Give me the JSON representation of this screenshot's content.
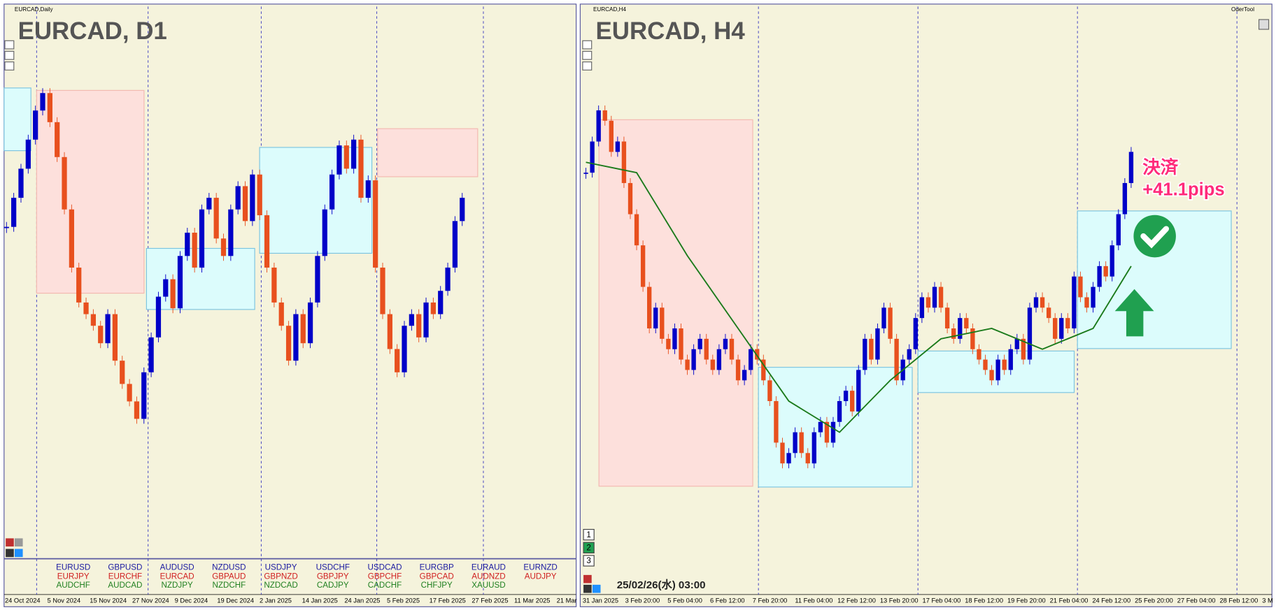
{
  "left_chart": {
    "window_label": "EURCAD,Daily",
    "title": "EURCAD, D1",
    "ylim": [
      1.44,
      1.51
    ],
    "closes": [
      1.485,
      1.49,
      1.495,
      1.5,
      1.505,
      1.508,
      1.503,
      1.497,
      1.488,
      1.478,
      1.472,
      1.47,
      1.468,
      1.465,
      1.47,
      1.462,
      1.458,
      1.455,
      1.452,
      1.46,
      1.466,
      1.473,
      1.476,
      1.471,
      1.48,
      1.484,
      1.478,
      1.488,
      1.49,
      1.483,
      1.48,
      1.488,
      1.492,
      1.486,
      1.494,
      1.487,
      1.478,
      1.472,
      1.468,
      1.462,
      1.47,
      1.465,
      1.472,
      1.48,
      1.488,
      1.494,
      1.499,
      1.495,
      1.5,
      1.49,
      1.493,
      1.478,
      1.47,
      1.464,
      1.46,
      1.468,
      1.47,
      1.466,
      1.472,
      1.47,
      1.474,
      1.478,
      1.486,
      1.49
    ],
    "x_labels": [
      "24 Oct 2024",
      "5 Nov 2024",
      "15 Nov 2024",
      "27 Nov 2024",
      "9 Dec 2024",
      "19 Dec 2024",
      "2 Jan 2025",
      "14 Jan 2025",
      "24 Jan 2025",
      "5 Feb 2025",
      "17 Feb 2025",
      "27 Feb 2025",
      "11 Mar 2025",
      "21 Mar"
    ]
  },
  "right_chart": {
    "window_label": "EURCAD,H4",
    "tool_label": "OderTool",
    "title": "EURCAD, H4",
    "ylim": [
      1.462,
      1.502
    ],
    "closes": [
      1.494,
      1.497,
      1.5,
      1.499,
      1.496,
      1.497,
      1.493,
      1.49,
      1.487,
      1.483,
      1.479,
      1.481,
      1.478,
      1.477,
      1.479,
      1.476,
      1.475,
      1.477,
      1.478,
      1.476,
      1.475,
      1.477,
      1.478,
      1.476,
      1.474,
      1.475,
      1.477,
      1.476,
      1.474,
      1.472,
      1.468,
      1.466,
      1.467,
      1.469,
      1.467,
      1.466,
      1.469,
      1.47,
      1.468,
      1.47,
      1.472,
      1.473,
      1.471,
      1.475,
      1.478,
      1.476,
      1.479,
      1.481,
      1.478,
      1.474,
      1.476,
      1.477,
      1.48,
      1.482,
      1.481,
      1.483,
      1.481,
      1.479,
      1.478,
      1.48,
      1.479,
      1.477,
      1.476,
      1.475,
      1.474,
      1.476,
      1.475,
      1.477,
      1.478,
      1.476,
      1.481,
      1.482,
      1.481,
      1.48,
      1.478,
      1.48,
      1.479,
      1.484,
      1.482,
      1.481,
      1.483,
      1.485,
      1.484,
      1.487,
      1.49,
      1.493,
      1.496
    ],
    "ma_index": [
      0,
      8,
      16,
      24,
      32,
      40,
      48,
      56,
      64,
      72,
      80,
      86
    ],
    "ma_values": [
      1.495,
      1.494,
      1.486,
      1.479,
      1.472,
      1.469,
      1.474,
      1.478,
      1.479,
      1.477,
      1.479,
      1.485
    ],
    "x_labels": [
      "31 Jan 2025",
      "3 Feb 20:00",
      "5 Feb 04:00",
      "6 Feb 12:00",
      "7 Feb 20:00",
      "11 Feb 04:00",
      "12 Feb 12:00",
      "13 Feb 20:00",
      "17 Feb 04:00",
      "18 Feb 12:00",
      "19 Feb 20:00",
      "21 Feb 04:00",
      "24 Feb 12:00",
      "25 Feb 20:00",
      "27 Feb 04:00",
      "28 Feb 12:00",
      "3 M"
    ],
    "annotation": [
      "決済",
      "+41.1pips"
    ],
    "timestamp": "25/02/26(水) 03:00",
    "buttons": [
      "1",
      "2",
      "3"
    ]
  },
  "symbols": [
    [
      "EURUSD",
      "EURJPY",
      "AUDCHF"
    ],
    [
      "GBPUSD",
      "EURCHF",
      "AUDCAD"
    ],
    [
      "AUDUSD",
      "EURCAD",
      "NZDJPY"
    ],
    [
      "NZDUSD",
      "GBPAUD",
      "NZDCHF"
    ],
    [
      "USDJPY",
      "GBPNZD",
      "NZDCAD"
    ],
    [
      "USDCHF",
      "GBPJPY",
      "CADJPY"
    ],
    [
      "USDCAD",
      "GBPCHF",
      "CADCHF"
    ],
    [
      "EURGBP",
      "GBPCAD",
      "CHFJPY"
    ],
    [
      "EURAUD",
      "AUDNZD",
      "XAUUSD"
    ],
    [
      "EURNZD",
      "AUDJPY"
    ]
  ]
}
